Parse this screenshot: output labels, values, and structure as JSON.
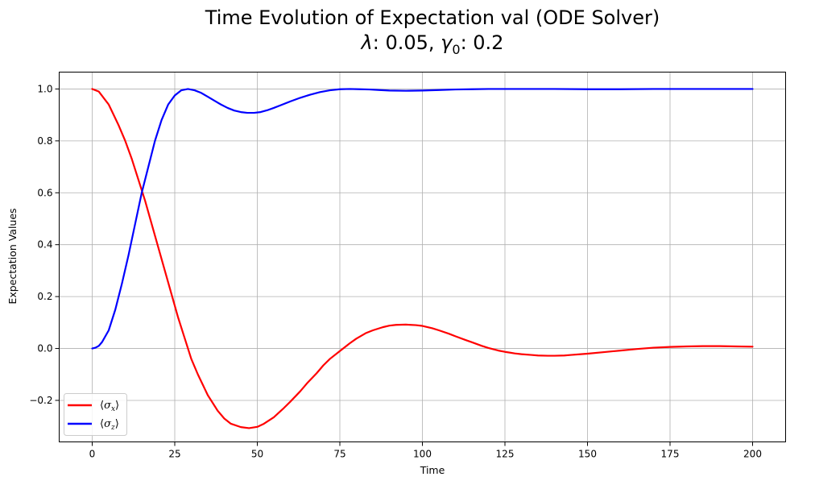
{
  "chart_data": {
    "type": "line",
    "title_line1": "Time Evolution of Expectation val (ODE Solver)",
    "title_line2": "λ: 0.05, γ0: 0.2",
    "xlabel": "Time",
    "ylabel": "Expectation Values",
    "xlim": [
      -10,
      210
    ],
    "ylim": [
      -0.36,
      1.065
    ],
    "xticks": [
      0,
      25,
      50,
      75,
      100,
      125,
      150,
      175,
      200
    ],
    "xtick_labels": [
      "0",
      "25",
      "50",
      "75",
      "100",
      "125",
      "150",
      "175",
      "200"
    ],
    "yticks": [
      -0.2,
      0.0,
      0.2,
      0.4,
      0.6,
      0.8,
      1.0
    ],
    "ytick_labels": [
      "−0.2",
      "0.0",
      "0.2",
      "0.4",
      "0.6",
      "0.8",
      "1.0"
    ],
    "grid": true,
    "legend_position": "lower-left",
    "series": [
      {
        "name": "⟨σx⟩",
        "color": "#ff0000",
        "x": [
          0,
          2,
          5,
          8,
          10,
          12,
          14,
          16,
          18,
          20,
          22,
          24,
          26,
          28,
          30,
          32,
          35,
          38,
          40,
          42,
          45,
          47.5,
          50,
          52,
          55,
          58,
          60,
          63,
          65,
          68,
          70,
          72,
          75,
          78,
          80,
          83,
          85,
          88,
          90,
          92,
          95,
          98,
          100,
          103,
          105,
          108,
          110,
          113,
          115,
          118,
          120,
          123,
          125,
          128,
          130,
          133,
          135,
          138,
          140,
          143,
          145,
          148,
          150,
          155,
          160,
          165,
          170,
          175,
          180,
          185,
          190,
          195,
          200
        ],
        "y": [
          1.0,
          0.99,
          0.94,
          0.86,
          0.8,
          0.73,
          0.65,
          0.57,
          0.48,
          0.39,
          0.3,
          0.21,
          0.12,
          0.04,
          -0.04,
          -0.1,
          -0.18,
          -0.24,
          -0.27,
          -0.29,
          -0.303,
          -0.307,
          -0.302,
          -0.29,
          -0.265,
          -0.23,
          -0.205,
          -0.165,
          -0.135,
          -0.095,
          -0.065,
          -0.04,
          -0.01,
          0.02,
          0.038,
          0.06,
          0.07,
          0.082,
          0.088,
          0.091,
          0.092,
          0.09,
          0.087,
          0.078,
          0.07,
          0.057,
          0.047,
          0.033,
          0.024,
          0.01,
          0.002,
          -0.008,
          -0.013,
          -0.019,
          -0.022,
          -0.025,
          -0.027,
          -0.028,
          -0.028,
          -0.027,
          -0.025,
          -0.022,
          -0.02,
          -0.014,
          -0.008,
          -0.002,
          0.003,
          0.006,
          0.008,
          0.009,
          0.009,
          0.008,
          0.007
        ]
      },
      {
        "name": "⟨σz⟩",
        "color": "#0000ff",
        "x": [
          0,
          1,
          2,
          3,
          5,
          7,
          9,
          11,
          13,
          15,
          17,
          19,
          21,
          23,
          25,
          27,
          29,
          31,
          33,
          35,
          37,
          39,
          41,
          43,
          45,
          47,
          49,
          51,
          53,
          55,
          57,
          60,
          63,
          66,
          69,
          72,
          75,
          78,
          81,
          84,
          87,
          90,
          95,
          100,
          105,
          110,
          115,
          120,
          125,
          130,
          140,
          150,
          160,
          170,
          180,
          190,
          200
        ],
        "y": [
          0.0,
          0.003,
          0.01,
          0.025,
          0.07,
          0.15,
          0.25,
          0.36,
          0.48,
          0.6,
          0.7,
          0.8,
          0.88,
          0.94,
          0.975,
          0.995,
          1.0,
          0.995,
          0.985,
          0.97,
          0.955,
          0.94,
          0.927,
          0.917,
          0.911,
          0.908,
          0.908,
          0.911,
          0.918,
          0.927,
          0.937,
          0.952,
          0.966,
          0.978,
          0.988,
          0.995,
          0.999,
          1.0,
          0.999,
          0.998,
          0.996,
          0.994,
          0.993,
          0.994,
          0.996,
          0.998,
          0.999,
          1.0,
          1.0,
          1.0,
          1.0,
          0.999,
          0.999,
          1.0,
          1.0,
          1.0,
          1.0
        ]
      }
    ]
  }
}
